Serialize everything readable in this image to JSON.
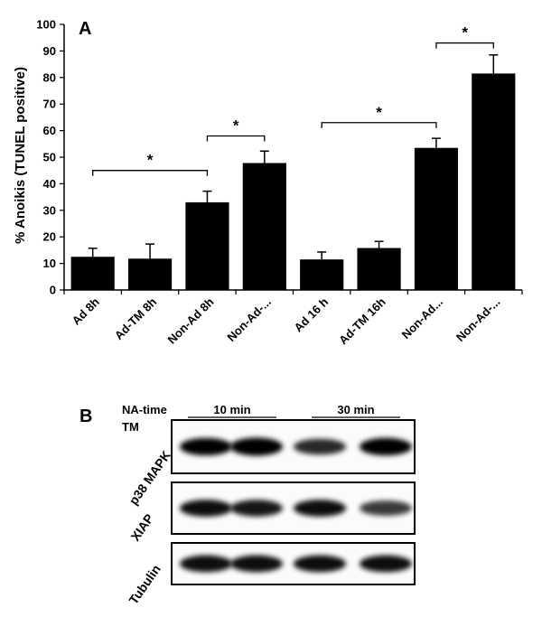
{
  "panel_a_label": "A",
  "panel_b_label": "B",
  "chart_data": {
    "type": "bar",
    "title": "",
    "xlabel": "",
    "ylabel": "% Anoikis (TUNEL positive)",
    "ylim": [
      0,
      100
    ],
    "yticks": [
      0,
      10,
      20,
      30,
      40,
      50,
      60,
      70,
      80,
      90,
      100
    ],
    "categories": [
      "Ad 8h",
      "Ad-TM 8h",
      "Non-Ad 8h",
      "Non-Ad-...",
      "Ad 16 h",
      "Ad-TM 16h",
      "Non-Ad...",
      "Non-Ad-..."
    ],
    "values": [
      12.5,
      11.8,
      33,
      47.8,
      11.5,
      15.8,
      53.5,
      81.5
    ],
    "errors": [
      3.2,
      5.5,
      4.2,
      4.5,
      2.8,
      2.5,
      3.6,
      7.0
    ],
    "grid": false,
    "significance": [
      {
        "from": 0,
        "to": 2,
        "y": 45,
        "label": "*"
      },
      {
        "from": 2,
        "to": 3,
        "y": 58,
        "label": "*"
      },
      {
        "from": 4,
        "to": 6,
        "y": 63,
        "label": "*"
      },
      {
        "from": 6,
        "to": 7,
        "y": 93,
        "label": "*"
      }
    ]
  },
  "western_blot": {
    "condition_labels": [
      "NA-time",
      "TM"
    ],
    "time_groups": [
      "10 min",
      "30 min"
    ],
    "tm_states": [
      "-",
      "+",
      "-",
      "+"
    ],
    "rows": [
      {
        "label": "p38 MAPK",
        "intensities": [
          0.92,
          1.0,
          0.7,
          0.95
        ]
      },
      {
        "label": "XIAP",
        "intensities": [
          0.85,
          0.8,
          0.85,
          0.6
        ]
      },
      {
        "label": "Tubulin",
        "intensities": [
          0.85,
          0.85,
          0.85,
          0.85
        ]
      }
    ]
  }
}
